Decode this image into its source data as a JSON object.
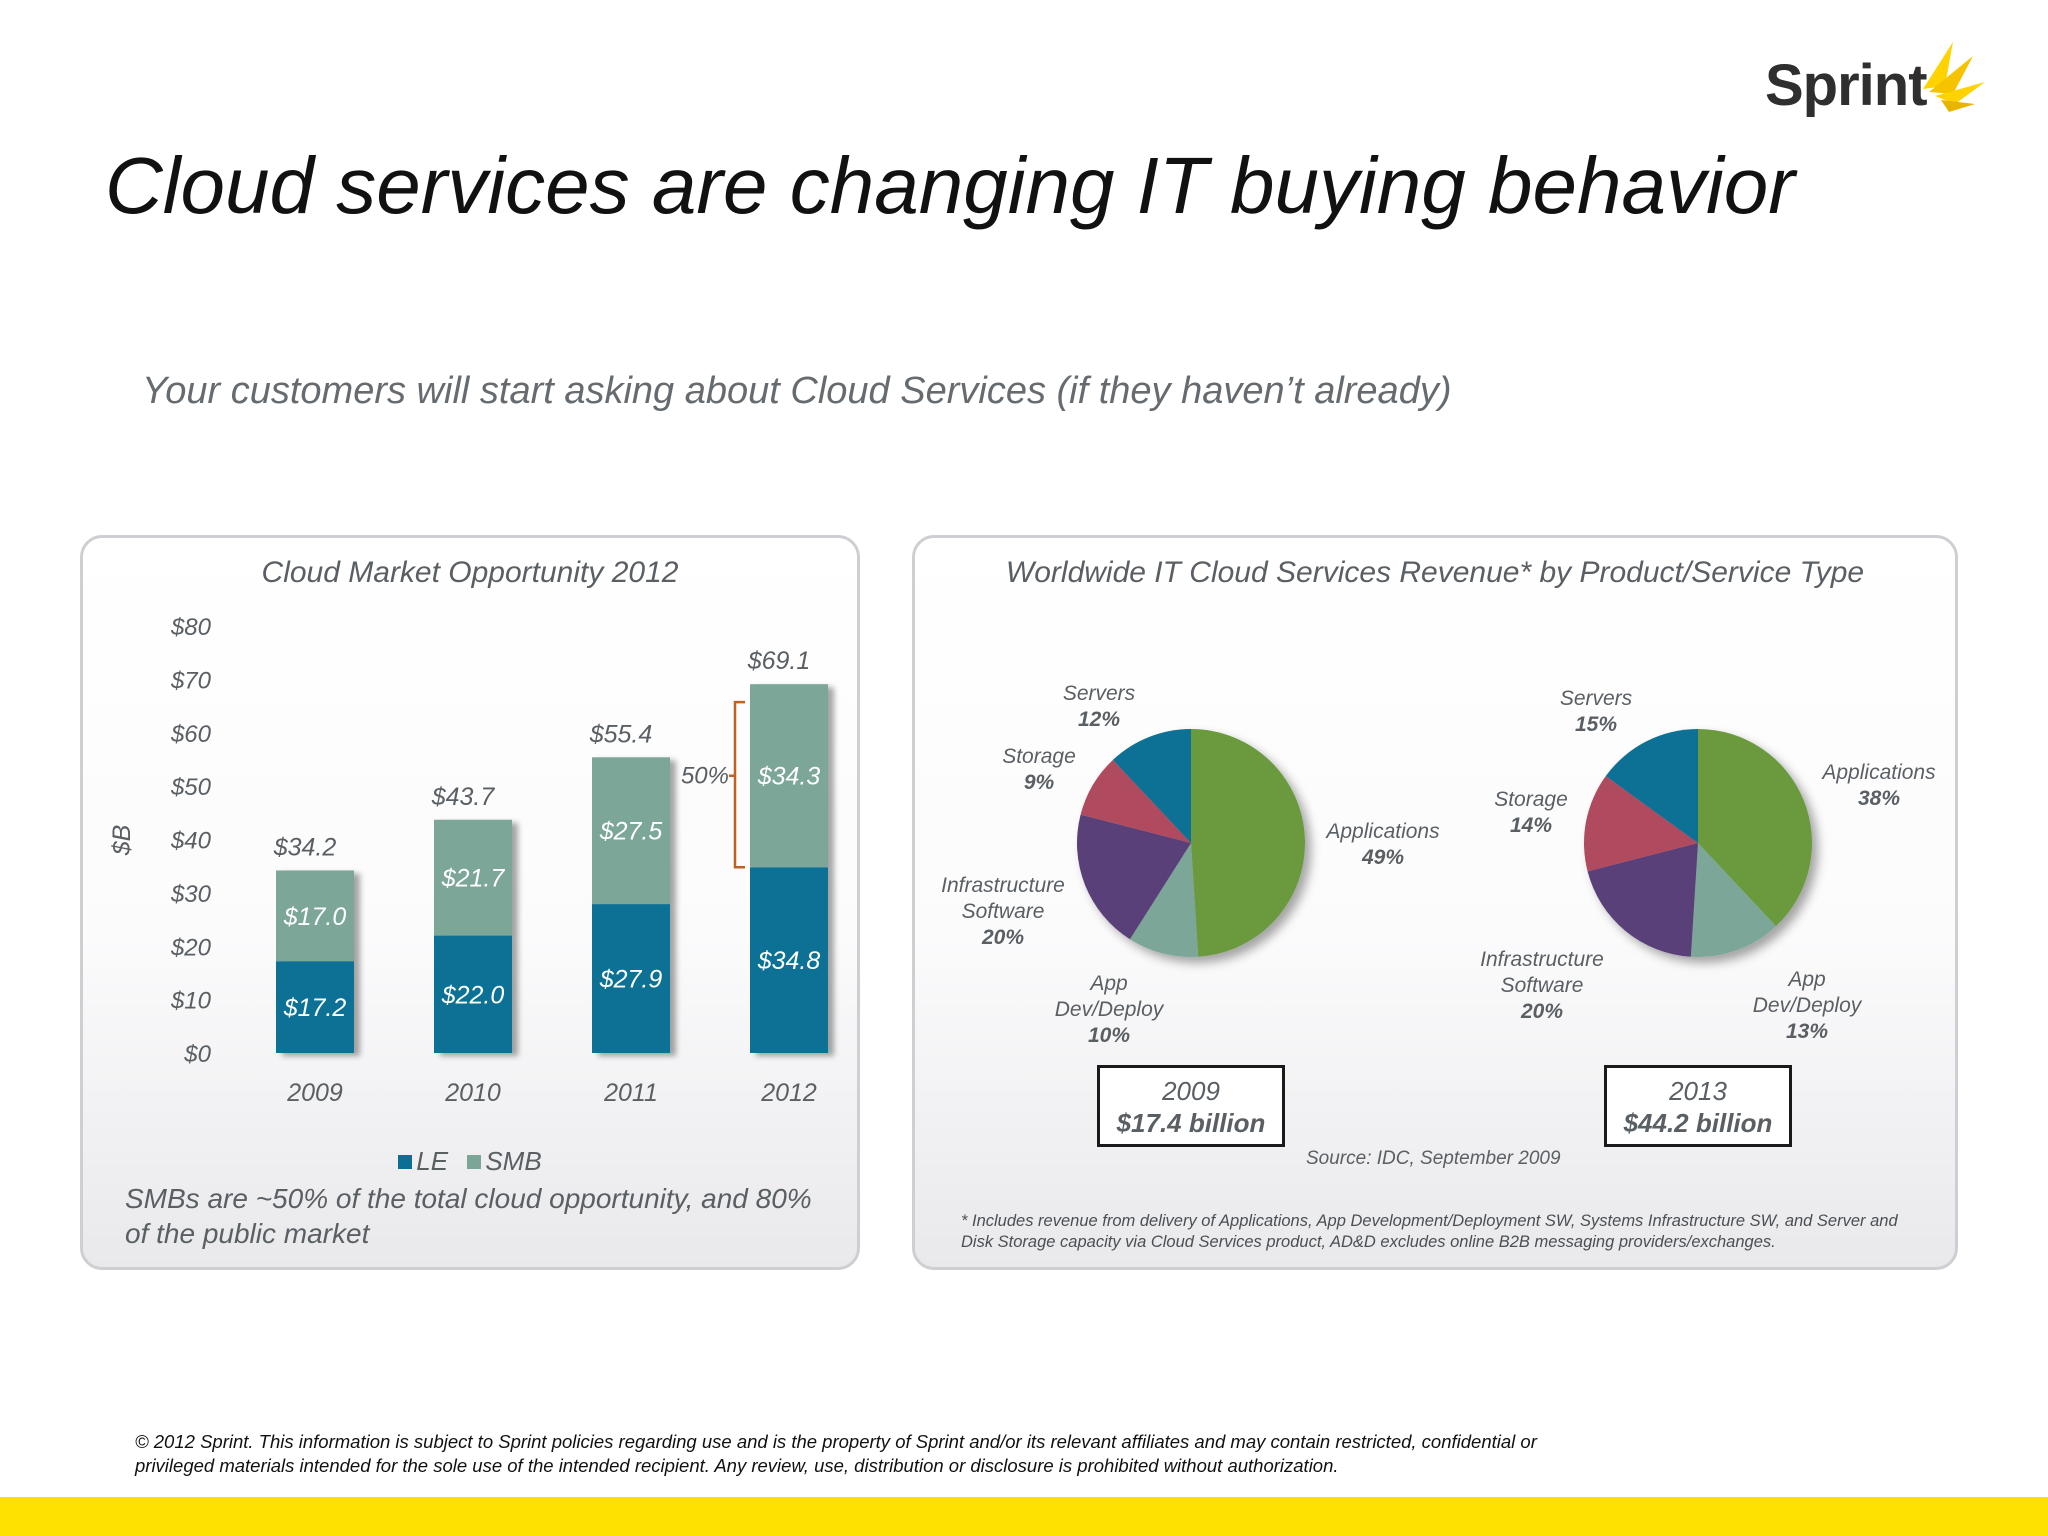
{
  "logo": {
    "text": "Sprint"
  },
  "title": "Cloud services are changing IT buying behavior",
  "subtitle": "Your customers will start asking about Cloud Services (if they haven’t already)",
  "colors": {
    "le": "#0b6f95",
    "smb": "#7ba697",
    "applications": "#6a9a3c",
    "app_dev": "#7ba697",
    "infrastructure": "#5a3f78",
    "storage": "#b04b5e",
    "servers": "#0b6f95",
    "brand_yellow": "#ffe100"
  },
  "left_panel": {
    "title": "Cloud Market Opportunity 2012",
    "note": "SMBs are ~50% of the total cloud opportunity, and 80% of the public market"
  },
  "right_panel": {
    "title": "Worldwide IT Cloud Services Revenue* by Product/Service Type",
    "box_2009": {
      "year": "2009",
      "amount": "$17.4 billion"
    },
    "box_2013": {
      "year": "2013",
      "amount": "$44.2 billion"
    },
    "source": "Source: IDC, September 2009",
    "footnote": "* Includes revenue from delivery of Applications, App Development/Deployment SW, Systems Infrastructure SW, and Server and Disk Storage capacity via Cloud Services product, AD&D excludes online B2B messaging providers/exchanges."
  },
  "copyright": "© 2012 Sprint. This information is subject to Sprint policies regarding use and is the property of Sprint and/or its relevant affiliates and may contain restricted, confidential or privileged materials intended for the sole use of the intended recipient. Any review, use, distribution or disclosure is prohibited without authorization.",
  "chart_data": [
    {
      "type": "bar",
      "stacked": true,
      "title": "Cloud Market Opportunity 2012",
      "xlabel": "",
      "ylabel": "$B",
      "categories": [
        "2009",
        "2010",
        "2011",
        "2012"
      ],
      "series": [
        {
          "name": "LE",
          "values": [
            17.2,
            22.0,
            27.9,
            34.8
          ],
          "labels": [
            "$17.2",
            "$22.0",
            "$27.9",
            "$34.8"
          ]
        },
        {
          "name": "SMB",
          "values": [
            17.0,
            21.7,
            27.5,
            34.3
          ],
          "labels": [
            "$17.0",
            "$21.7",
            "$27.5",
            "$34.3"
          ]
        }
      ],
      "totals": [
        "$34.2",
        "$43.7",
        "$55.4",
        "$69.1"
      ],
      "ylim": [
        0,
        80
      ],
      "yticks": [
        0,
        10,
        20,
        30,
        40,
        50,
        60,
        70,
        80
      ],
      "ytick_labels": [
        "$0",
        "$10",
        "$20",
        "$30",
        "$40",
        "$50",
        "$60",
        "$70",
        "$80"
      ],
      "annotation": "50%",
      "legend": [
        "LE",
        "SMB"
      ],
      "legend_position": "bottom",
      "grid": false
    },
    {
      "type": "pie",
      "title": "2009",
      "slices": [
        {
          "name": "Applications",
          "value": 49,
          "label": "49%"
        },
        {
          "name": "App Dev/Deploy",
          "value": 10,
          "label": "10%"
        },
        {
          "name": "Infrastructure Software",
          "value": 20,
          "label": "20%"
        },
        {
          "name": "Storage",
          "value": 9,
          "label": "9%"
        },
        {
          "name": "Servers",
          "value": 12,
          "label": "12%"
        }
      ]
    },
    {
      "type": "pie",
      "title": "2013",
      "slices": [
        {
          "name": "Applications",
          "value": 38,
          "label": "38%"
        },
        {
          "name": "App Dev/Deploy",
          "value": 13,
          "label": "13%"
        },
        {
          "name": "Infrastructure Software",
          "value": 20,
          "label": "20%"
        },
        {
          "name": "Storage",
          "value": 14,
          "label": "14%"
        },
        {
          "name": "Servers",
          "value": 15,
          "label": "15%"
        }
      ]
    }
  ]
}
